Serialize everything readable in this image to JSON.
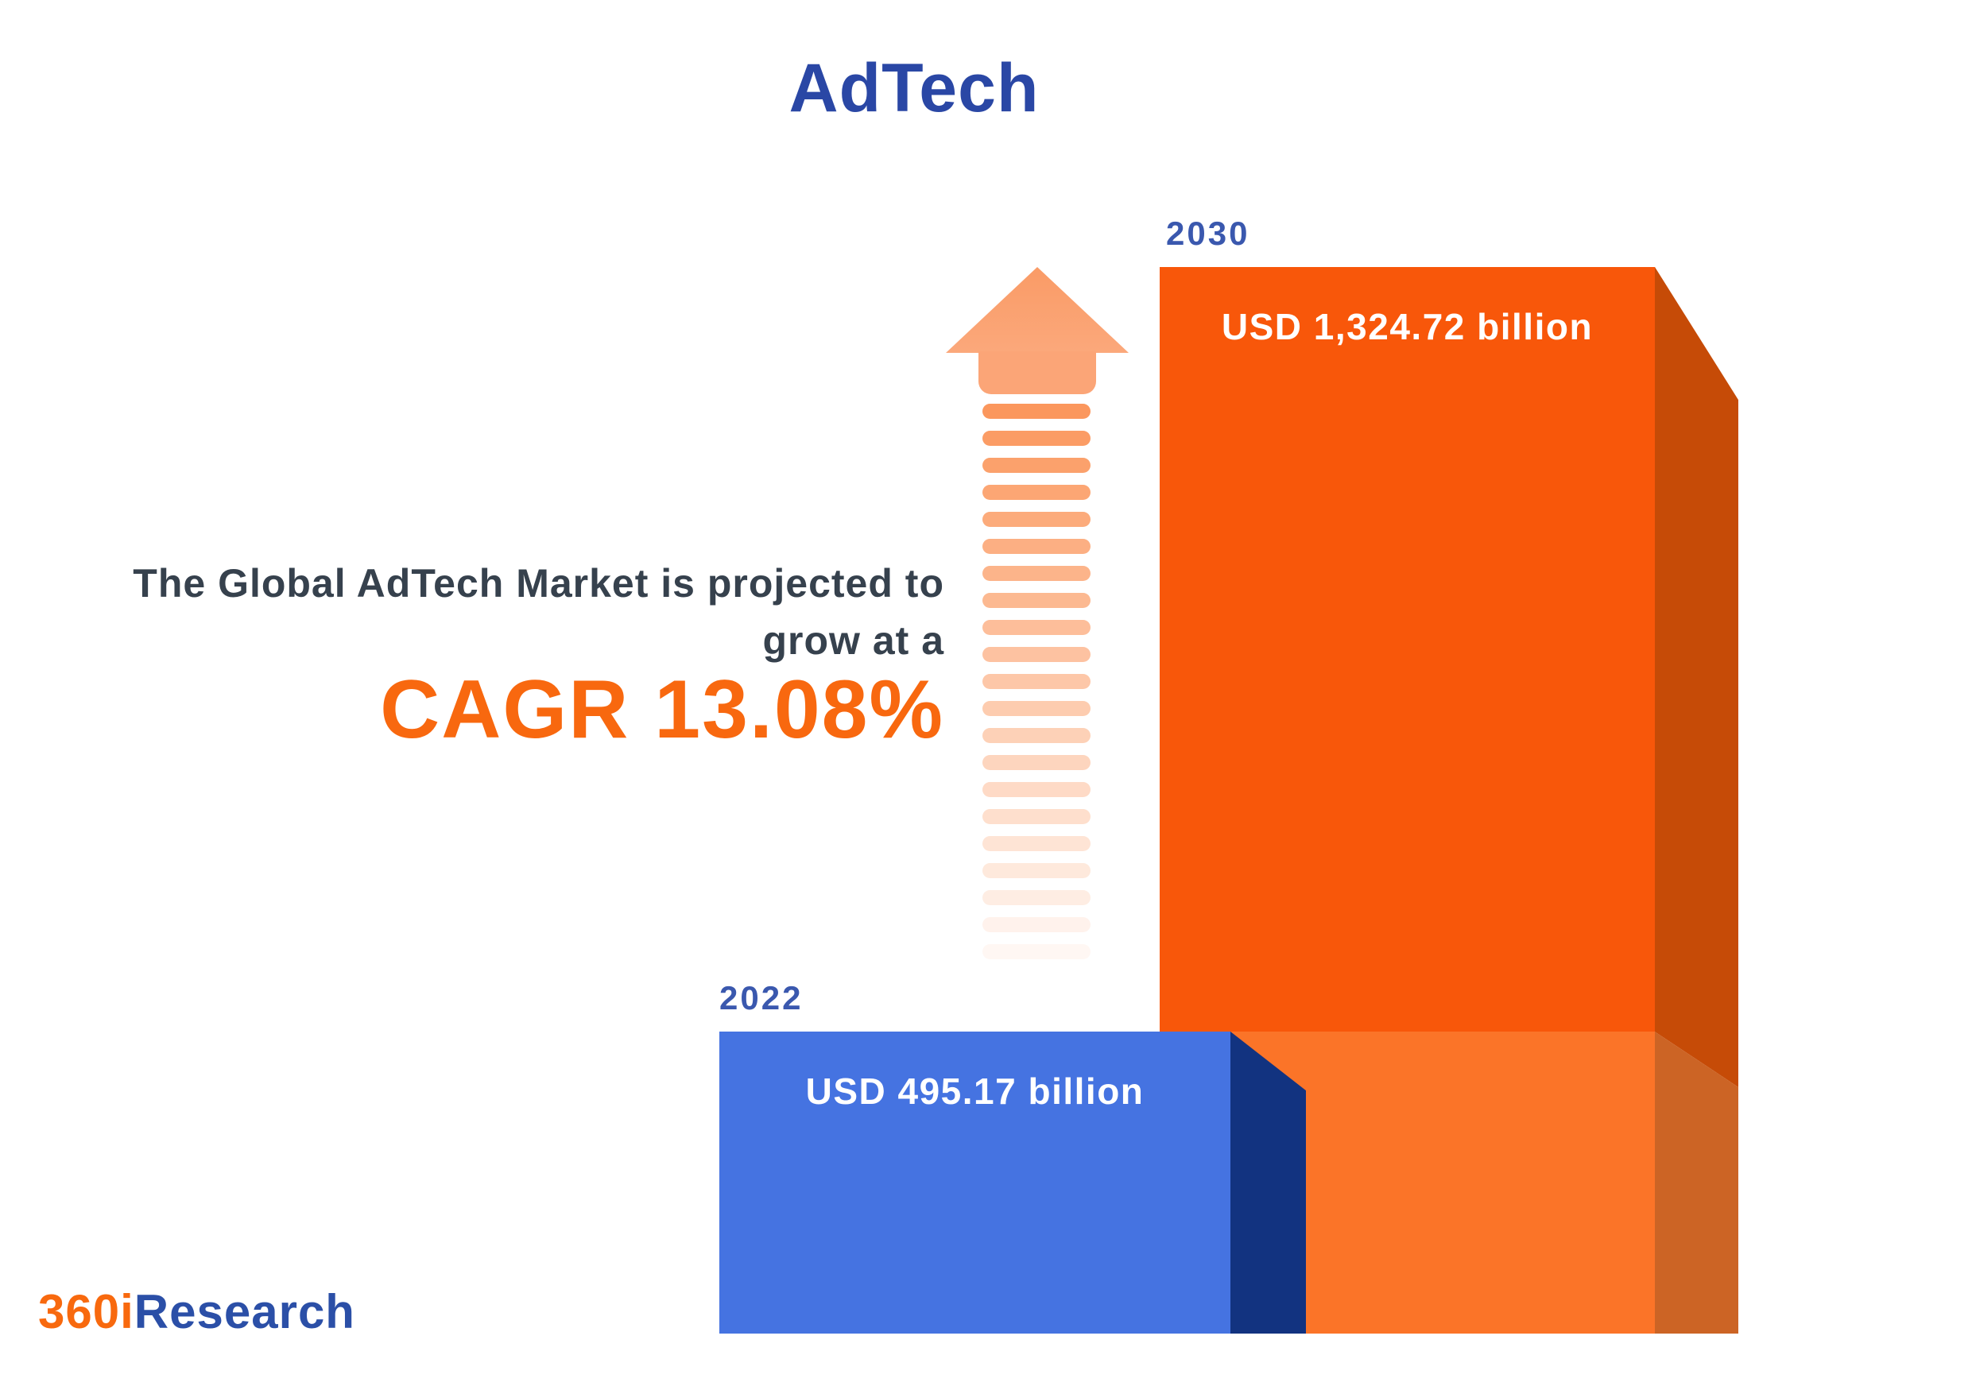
{
  "title": "AdTech",
  "annotation": {
    "line1": "The Global AdTech Market is projected to",
    "line2": "grow at a",
    "cagr": "CAGR 13.08%"
  },
  "bars": [
    {
      "year": "2022",
      "value_label": "USD 495.17 billion"
    },
    {
      "year": "2030",
      "value_label": "USD 1,324.72 billion"
    }
  ],
  "logo": {
    "part1": "360i",
    "part2": "Research"
  },
  "chart_data": {
    "type": "bar",
    "title": "AdTech",
    "categories": [
      "2022",
      "2030"
    ],
    "values": [
      495.17,
      1324.72
    ],
    "unit": "USD billion",
    "value_labels": [
      "USD 495.17 billion",
      "USD 1,324.72 billion"
    ],
    "cagr_percent": 13.08,
    "orientation": "vertical-3d",
    "legend": "none",
    "grid": false,
    "bar_colors": [
      "#4573E1",
      "#F8570A"
    ]
  },
  "colors": {
    "title_blue": "#2A47A5",
    "annotation_text": "#36414D",
    "cagr_orange": "#F8680F",
    "year_blue": "#3A58AE",
    "blue_front": "#4573E1",
    "blue_side": "#123380",
    "orange_front": "#F8570A",
    "orange_front_light": "#FB7428",
    "orange_side": "#C64B07",
    "orange_side_light": "#CC6425",
    "arrow_base": "#FA7A30",
    "logo_orange": "#F8690E",
    "logo_blue": "#2B4FA7",
    "background": "#FFFFFF"
  }
}
